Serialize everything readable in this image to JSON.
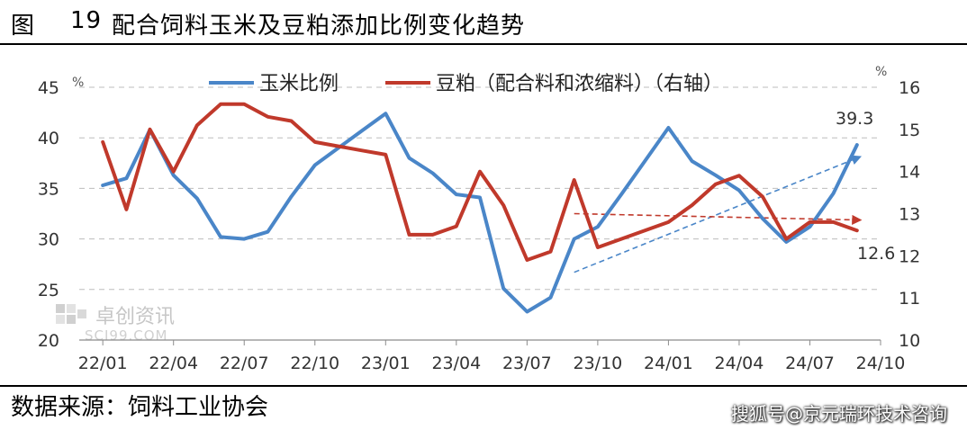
{
  "header": {
    "fig_label": "图",
    "fig_number": "19",
    "title": "配合饲料玉米及豆粕添加比例变化趋势"
  },
  "footer": {
    "source": "数据来源：饲料工业协会",
    "watermark": "搜狐号@京元瑞环技术咨询"
  },
  "logo": {
    "name": "卓创资讯",
    "url": "SCI99.COM"
  },
  "colors": {
    "corn": "#4a86c8",
    "soy": "#c0392b"
  },
  "chart_data": {
    "type": "line",
    "left_unit": "%",
    "right_unit": "%",
    "left_axis": {
      "min": 20,
      "max": 45,
      "ticks": [
        "45",
        "40",
        "35",
        "30",
        "25",
        "20"
      ]
    },
    "right_axis": {
      "min": 10,
      "max": 16,
      "ticks": [
        "16",
        "15",
        "14",
        "13",
        "12",
        "11",
        "10"
      ]
    },
    "x_ticks": [
      "22/01",
      "22/04",
      "22/07",
      "22/10",
      "23/01",
      "23/04",
      "23/07",
      "23/10",
      "24/01",
      "24/04",
      "24/07",
      "24/10"
    ],
    "grid": "horizontal-dashed",
    "legend_position": "top-center",
    "series": [
      {
        "name": "玉米比例",
        "axis": "left",
        "color": "#4a86c8",
        "values": [
          35.3,
          36.0,
          40.8,
          36.3,
          34.0,
          30.2,
          30.0,
          30.7,
          34.2,
          37.3,
          39.0,
          40.7,
          42.4,
          38.0,
          36.5,
          34.4,
          34.1,
          25.1,
          22.8,
          24.2,
          30.0,
          31.2,
          34.4,
          37.7,
          41.0,
          37.7,
          36.3,
          34.8,
          32.0,
          29.7,
          31.2,
          34.5,
          39.3
        ]
      },
      {
        "name": "豆粕（配合料和浓缩料）（右轴）",
        "axis": "right",
        "color": "#c0392b",
        "values": [
          14.7,
          13.1,
          15.0,
          14.0,
          15.1,
          15.6,
          15.6,
          15.3,
          15.2,
          14.7,
          14.6,
          14.5,
          14.4,
          12.5,
          12.5,
          12.7,
          14.0,
          13.2,
          11.9,
          12.1,
          13.8,
          12.2,
          12.4,
          12.6,
          12.8,
          13.2,
          13.7,
          13.9,
          13.4,
          12.4,
          12.8,
          12.8,
          12.6
        ]
      }
    ],
    "trendlines": [
      {
        "series": "玉米比例",
        "axis": "left",
        "from": {
          "x": 20,
          "y": 26.7
        },
        "to": {
          "x": 32,
          "y": 38.0
        },
        "style": "dashed",
        "color": "#4a86c8"
      },
      {
        "series": "豆粕（配合料和浓缩料）（右轴）",
        "axis": "right",
        "from": {
          "x": 20,
          "y": 13.0
        },
        "to": {
          "x": 32,
          "y": 12.85
        },
        "style": "dashed",
        "color": "#c0392b"
      }
    ],
    "annotations": [
      {
        "text": "39.3",
        "series": "玉米比例"
      },
      {
        "text": "12.6",
        "series": "豆粕（配合料和浓缩料）（右轴）"
      }
    ]
  }
}
